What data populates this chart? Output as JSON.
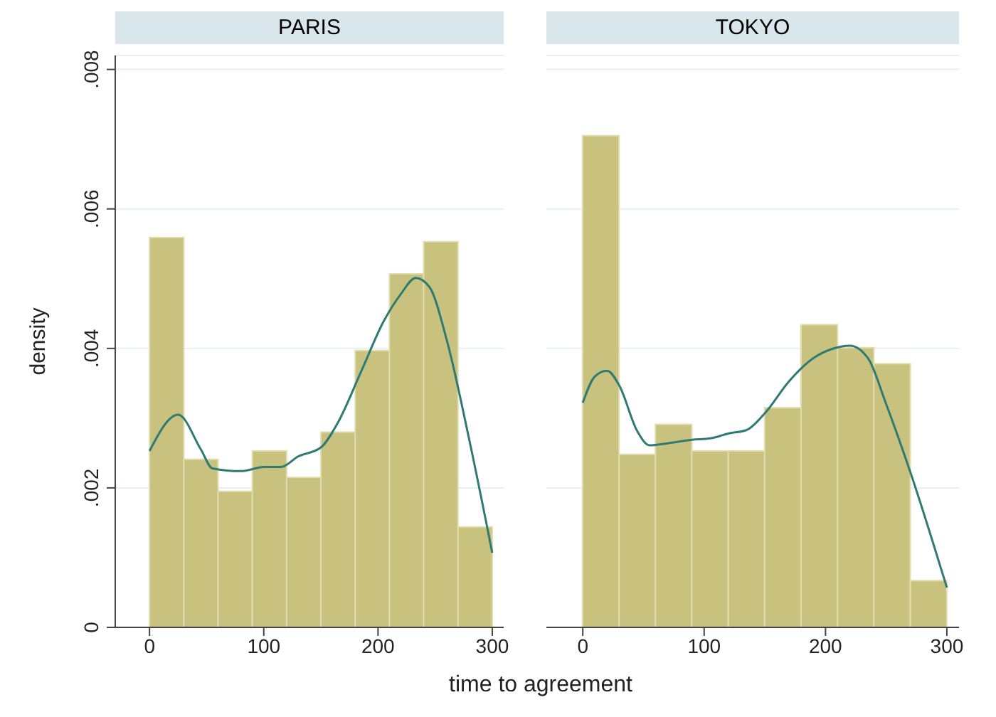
{
  "chart_data": [
    {
      "type": "histogram",
      "title": "PARIS",
      "xlabel": "time to agreement",
      "ylabel": "density",
      "bins": [
        0,
        30,
        60,
        90,
        120,
        150,
        180,
        210,
        240,
        270,
        300
      ],
      "values": [
        0.00559,
        0.00241,
        0.00195,
        0.00253,
        0.00215,
        0.0028,
        0.00397,
        0.00507,
        0.00553,
        0.00144
      ],
      "color": "#c9c27f",
      "xlim": [
        -30,
        310
      ],
      "xticks": [
        0,
        100,
        200,
        300
      ],
      "ylim": [
        0,
        0.0082
      ],
      "yticks": [
        0,
        {
          "value": 0.002,
          "label": ".002"
        },
        {
          "value": 0.004,
          "label": ".004"
        },
        {
          "value": 0.006,
          "label": ".006"
        },
        {
          "value": 0.008,
          "label": ".008"
        }
      ],
      "grid": "y",
      "series": [
        {
          "type": "line",
          "color": "#2f7a72",
          "x": [
            0,
            25,
            45,
            55,
            80,
            100,
            115,
            130,
            150,
            165,
            185,
            205,
            220,
            233,
            245,
            260,
            280,
            300
          ],
          "values": [
            0.00253,
            0.00305,
            0.00255,
            0.00228,
            0.00224,
            0.0023,
            0.0023,
            0.00245,
            0.00258,
            0.00294,
            0.00366,
            0.00439,
            0.00478,
            0.00501,
            0.00488,
            0.00413,
            0.00268,
            0.00107
          ]
        }
      ]
    },
    {
      "type": "histogram",
      "title": "TOKYO",
      "bins": [
        0,
        30,
        60,
        90,
        120,
        150,
        180,
        210,
        240,
        270,
        300
      ],
      "values": [
        0.00705,
        0.00248,
        0.00291,
        0.00253,
        0.00253,
        0.00315,
        0.00434,
        0.00401,
        0.00378,
        0.00067
      ],
      "color": "#c9c27f",
      "xlim": [
        -30,
        310
      ],
      "xticks": [
        0,
        100,
        200,
        300
      ],
      "ylim": [
        0,
        0.0082
      ],
      "yticks": [
        0,
        0.002,
        0.004,
        0.006,
        0.008
      ],
      "grid": "y",
      "tick_labels": "x",
      "series": [
        {
          "type": "line",
          "color": "#2f7a72",
          "x": [
            0,
            10,
            20,
            30,
            45,
            55,
            70,
            90,
            105,
            120,
            135,
            150,
            170,
            190,
            205,
            220,
            235,
            250,
            270,
            300
          ],
          "values": [
            0.00322,
            0.0036,
            0.00368,
            0.00347,
            0.00281,
            0.00261,
            0.00264,
            0.00269,
            0.00271,
            0.00278,
            0.00283,
            0.00307,
            0.00353,
            0.00386,
            0.00399,
            0.00404,
            0.00386,
            0.0032,
            0.00222,
            0.00057
          ]
        }
      ]
    }
  ]
}
